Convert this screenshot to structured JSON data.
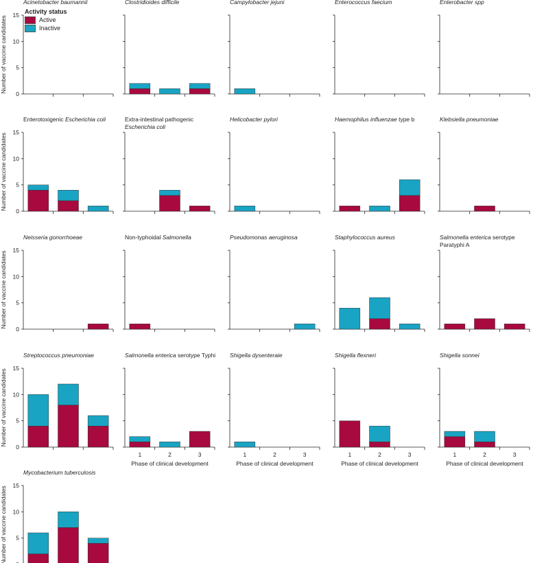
{
  "chart_data": {
    "type": "bar",
    "stacked": true,
    "ylabel": "Number of vaccine candidates",
    "xlabel": "Phase of clinical development",
    "categories": [
      "1",
      "2",
      "3"
    ],
    "ylim": [
      0,
      15
    ],
    "yticks": [
      0,
      5,
      10,
      15
    ],
    "colors": {
      "active": "#a8093e",
      "inactive": "#19a4c3"
    },
    "legend": {
      "title": "Activity status",
      "active_label": "Active",
      "inactive_label": "Inactive"
    },
    "panels": [
      {
        "title_parts": [
          {
            "text": "Acinetobacter baumannii",
            "italic": true
          }
        ],
        "active": [
          0,
          0,
          0
        ],
        "inactive": [
          0,
          0,
          0
        ]
      },
      {
        "title_parts": [
          {
            "text": "Clostridioides difficile",
            "italic": true
          }
        ],
        "active": [
          1,
          0,
          1
        ],
        "inactive": [
          1,
          1,
          1
        ]
      },
      {
        "title_parts": [
          {
            "text": "Campylobacter jejuni",
            "italic": true
          }
        ],
        "active": [
          0,
          0,
          0
        ],
        "inactive": [
          1,
          0,
          0
        ]
      },
      {
        "title_parts": [
          {
            "text": "Enterococcus faecium",
            "italic": true
          }
        ],
        "active": [
          0,
          0,
          0
        ],
        "inactive": [
          0,
          0,
          0
        ]
      },
      {
        "title_parts": [
          {
            "text": "Enterobacter spp",
            "italic": true
          }
        ],
        "active": [
          0,
          0,
          0
        ],
        "inactive": [
          0,
          0,
          0
        ]
      },
      {
        "title_parts": [
          {
            "text": "Enterotoxigenic ",
            "italic": false
          },
          {
            "text": "Escherichia coli",
            "italic": true
          }
        ],
        "active": [
          4,
          2,
          0
        ],
        "inactive": [
          1,
          2,
          1
        ]
      },
      {
        "title_parts": [
          {
            "text": "Extra-intestinal pathogenic",
            "italic": false
          },
          {
            "text": "Escherichia coli",
            "italic": true,
            "newline": true
          }
        ],
        "active": [
          0,
          3,
          1
        ],
        "inactive": [
          0,
          1,
          0
        ]
      },
      {
        "title_parts": [
          {
            "text": "Helicobacter pylori",
            "italic": true
          }
        ],
        "active": [
          0,
          0,
          0
        ],
        "inactive": [
          1,
          0,
          0
        ]
      },
      {
        "title_parts": [
          {
            "text": "Haemophilus influenzae",
            "italic": true
          },
          {
            "text": " type b",
            "italic": false
          }
        ],
        "active": [
          1,
          0,
          3
        ],
        "inactive": [
          0,
          1,
          3
        ]
      },
      {
        "title_parts": [
          {
            "text": "Klebsiella pneumoniae",
            "italic": true
          }
        ],
        "active": [
          0,
          1,
          0
        ],
        "inactive": [
          0,
          0,
          0
        ]
      },
      {
        "title_parts": [
          {
            "text": "Neisseria gonorrhoeae",
            "italic": true
          }
        ],
        "active": [
          0,
          0,
          1
        ],
        "inactive": [
          0,
          0,
          0
        ]
      },
      {
        "title_parts": [
          {
            "text": "Non-typhoidal ",
            "italic": false
          },
          {
            "text": "Salmonella",
            "italic": true
          }
        ],
        "active": [
          1,
          0,
          0
        ],
        "inactive": [
          0,
          0,
          0
        ]
      },
      {
        "title_parts": [
          {
            "text": "Pseudomonas aeruginosa",
            "italic": true
          }
        ],
        "active": [
          0,
          0,
          0
        ],
        "inactive": [
          0,
          0,
          1
        ]
      },
      {
        "title_parts": [
          {
            "text": "Staphylococcus aureus",
            "italic": true
          }
        ],
        "active": [
          0,
          2,
          0
        ],
        "inactive": [
          4,
          4,
          1
        ]
      },
      {
        "title_parts": [
          {
            "text": "Salmonella enterica",
            "italic": true
          },
          {
            "text": " serotype",
            "italic": false
          },
          {
            "text": "Paratyphi A",
            "italic": false,
            "newline": true
          }
        ],
        "active": [
          1,
          2,
          1
        ],
        "inactive": [
          0,
          0,
          0
        ]
      },
      {
        "title_parts": [
          {
            "text": "Streptococcus pneumoniae",
            "italic": true
          }
        ],
        "active": [
          4,
          8,
          4
        ],
        "inactive": [
          6,
          4,
          2
        ]
      },
      {
        "title_parts": [
          {
            "text": "Salmonella enterica",
            "italic": true
          },
          {
            "text": " serotype Typhi",
            "italic": false
          }
        ],
        "active": [
          1,
          0,
          3
        ],
        "inactive": [
          1,
          1,
          0
        ]
      },
      {
        "title_parts": [
          {
            "text": "Shigella dysenteraie",
            "italic": true
          }
        ],
        "active": [
          0,
          0,
          0
        ],
        "inactive": [
          1,
          0,
          0
        ]
      },
      {
        "title_parts": [
          {
            "text": "Shigella flexneri",
            "italic": true
          }
        ],
        "active": [
          5,
          1,
          0
        ],
        "inactive": [
          0,
          3,
          0
        ]
      },
      {
        "title_parts": [
          {
            "text": "Shigella sonnei",
            "italic": true
          }
        ],
        "active": [
          2,
          1,
          0
        ],
        "inactive": [
          1,
          2,
          0
        ]
      },
      {
        "title_parts": [
          {
            "text": "Mycobacterium tuberculosis",
            "italic": true
          }
        ],
        "active": [
          2,
          7,
          4
        ],
        "inactive": [
          4,
          3,
          1
        ]
      }
    ]
  }
}
